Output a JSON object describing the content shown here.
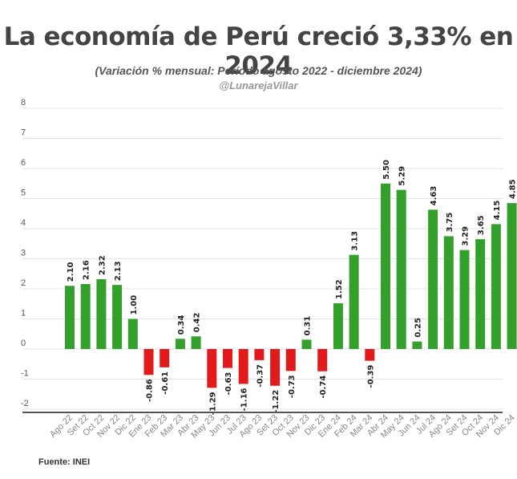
{
  "header": {
    "title": "La economía de Perú creció 3,33% en 2024",
    "subtitle": "(Variación % mensual: Período agosto 2022 - diciembre 2024)",
    "handle": "@LunarejaVillar"
  },
  "footer": {
    "source": "Fuente: INEI"
  },
  "chart_data": {
    "type": "bar",
    "title": "La economía de Perú creció 3,33% en 2024",
    "subtitle": "(Variación % mensual: Período agosto 2022 - diciembre 2024)",
    "xlabel": "",
    "ylabel": "",
    "ylim": [
      -2,
      8
    ],
    "yticks": [
      -2,
      -1,
      0,
      1,
      2,
      3,
      4,
      5,
      6,
      7,
      8
    ],
    "grid": true,
    "legend": "none",
    "colors": {
      "positive": "#33a02c",
      "negative": "#e31a1c"
    },
    "categories": [
      "Ago 22",
      "Set 22",
      "Oct 22",
      "Nov 22",
      "Dic 22",
      "Ene 23",
      "Feb 23",
      "Mar 23",
      "Abr 23",
      "May 23",
      "Jun 23",
      "Jul 23",
      "Ago 23",
      "Set 23",
      "Oct 23",
      "Nov 23",
      "Dic 23",
      "Ene 24",
      "Feb 24",
      "Mar 24",
      "Abr 24",
      "May 24",
      "Jun 24",
      "Jul 24",
      "Ago 24",
      "Set 24",
      "Oct 24",
      "Nov 24",
      "Dic 24"
    ],
    "values": [
      2.1,
      2.16,
      2.32,
      2.13,
      1.0,
      -0.86,
      -0.61,
      0.34,
      0.42,
      -1.29,
      -0.63,
      -1.16,
      -0.37,
      -1.22,
      -0.73,
      0.31,
      -0.74,
      1.52,
      3.13,
      -0.39,
      5.5,
      5.29,
      0.25,
      4.63,
      3.75,
      3.29,
      3.65,
      4.15,
      4.85
    ],
    "value_labels": [
      "2.10",
      "2.16",
      "2.32",
      "2.13",
      "1.00",
      "-0.86",
      "-0.61",
      "0.34",
      "0.42",
      "-1.29",
      "-0.63",
      "-1.16",
      "-0.37",
      "-1.22",
      "-0.73",
      "0.31",
      "-0.74",
      "1.52",
      "3.13",
      "-0.39",
      "5.50",
      "5.29",
      "0.25",
      "4.63",
      "3.75",
      "3.29",
      "3.65",
      "4.15",
      "4.85"
    ]
  }
}
